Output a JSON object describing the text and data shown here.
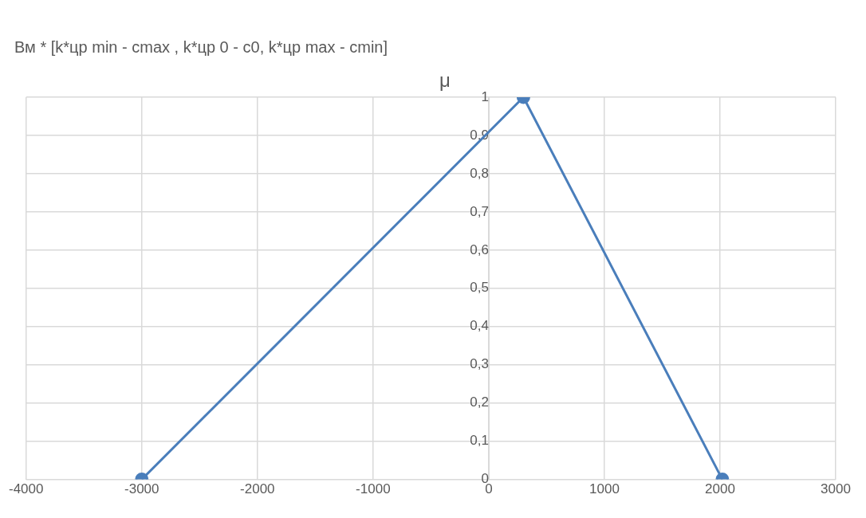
{
  "chart_data": {
    "type": "line",
    "title": "Вм * [k*цр min - cmax , k*цр 0 - c0, k*цр max - cmin]",
    "ylabel": "μ",
    "x": [
      -3000,
      300,
      2020
    ],
    "series": [
      {
        "color": "#4a7ebb",
        "values": [
          0,
          1,
          0
        ]
      }
    ],
    "xlim": [
      -4000,
      3000
    ],
    "xticks": [
      -4000,
      -3000,
      -2000,
      -1000,
      0,
      1000,
      2000,
      3000
    ],
    "ylim": [
      0,
      1
    ],
    "yticks": [
      0,
      {
        "value": 0.1,
        "label": "0,1"
      },
      {
        "value": 0.2,
        "label": "0,2"
      },
      {
        "value": 0.3,
        "label": "0,3"
      },
      {
        "value": 0.4,
        "label": "0,4"
      },
      {
        "value": 0.5,
        "label": "0,5"
      },
      {
        "value": 0.6,
        "label": "0,6"
      },
      {
        "value": 0.7,
        "label": "0,7"
      },
      {
        "value": 0.8,
        "label": "0,8"
      },
      {
        "value": 0.9,
        "label": "0,9"
      },
      1
    ],
    "grid": true,
    "marker": "circle",
    "line_style": "solid",
    "legend": false
  }
}
